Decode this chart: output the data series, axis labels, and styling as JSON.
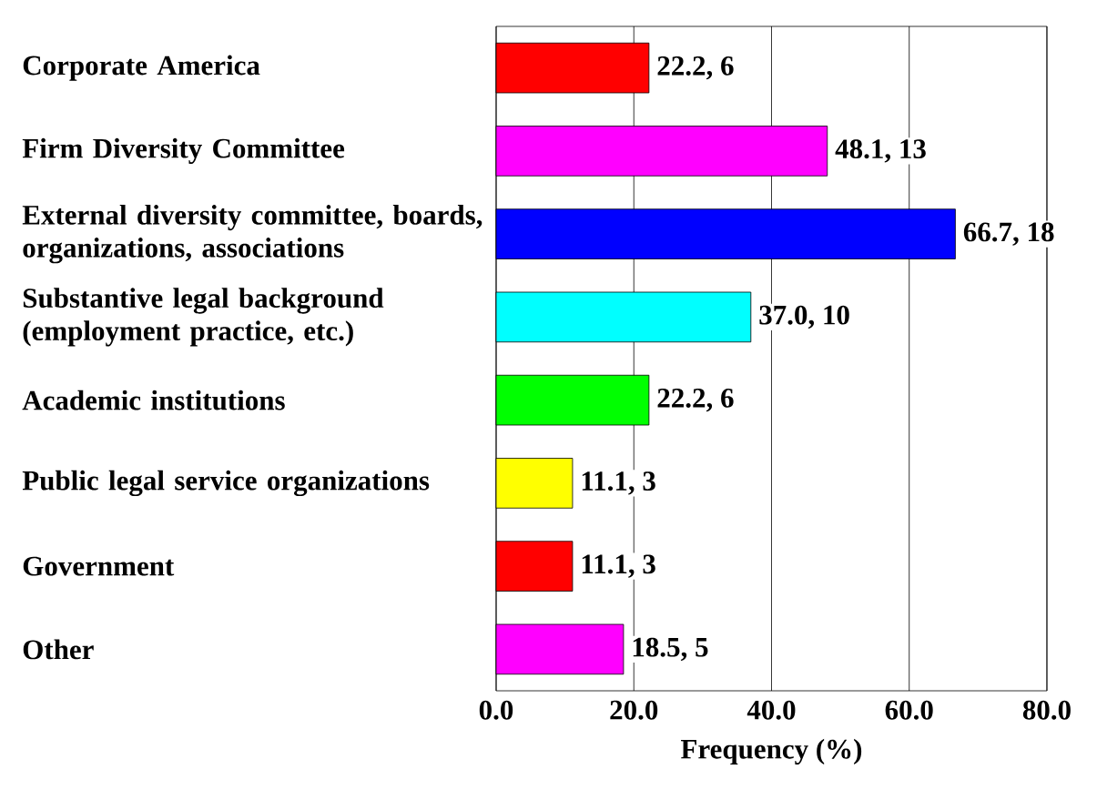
{
  "chart_data": {
    "type": "bar",
    "orientation": "horizontal",
    "xlabel": "Frequency (%)",
    "categories": [
      "Corporate America",
      "Firm Diversity Committee",
      "External diversity committee, boards, organizations, associations",
      "Substantive legal background (employment practice, etc.)",
      "Academic institutions",
      "Public legal service organizations",
      "Government",
      "Other"
    ],
    "values": [
      22.2,
      48.1,
      66.7,
      37.0,
      22.2,
      11.1,
      11.1,
      18.5
    ],
    "value_labels": [
      "22.2, 6",
      "48.1, 13",
      "66.7, 18",
      "37.0, 10",
      "22.2, 6",
      "11.1, 3",
      "11.1, 3",
      "18.5, 5"
    ],
    "colors": [
      "#ff0000",
      "#ff00ff",
      "#0000ff",
      "#00ffff",
      "#00ff00",
      "#ffff00",
      "#ff0000",
      "#ff00ff"
    ],
    "xlim": [
      0,
      80
    ],
    "xticks": [
      {
        "value": 0,
        "label": "0.0"
      },
      {
        "value": 20,
        "label": "20.0"
      },
      {
        "value": 40,
        "label": "40.0"
      },
      {
        "value": 60,
        "label": "60.0"
      },
      {
        "value": 80,
        "label": "80.0"
      }
    ],
    "grid": "x"
  }
}
